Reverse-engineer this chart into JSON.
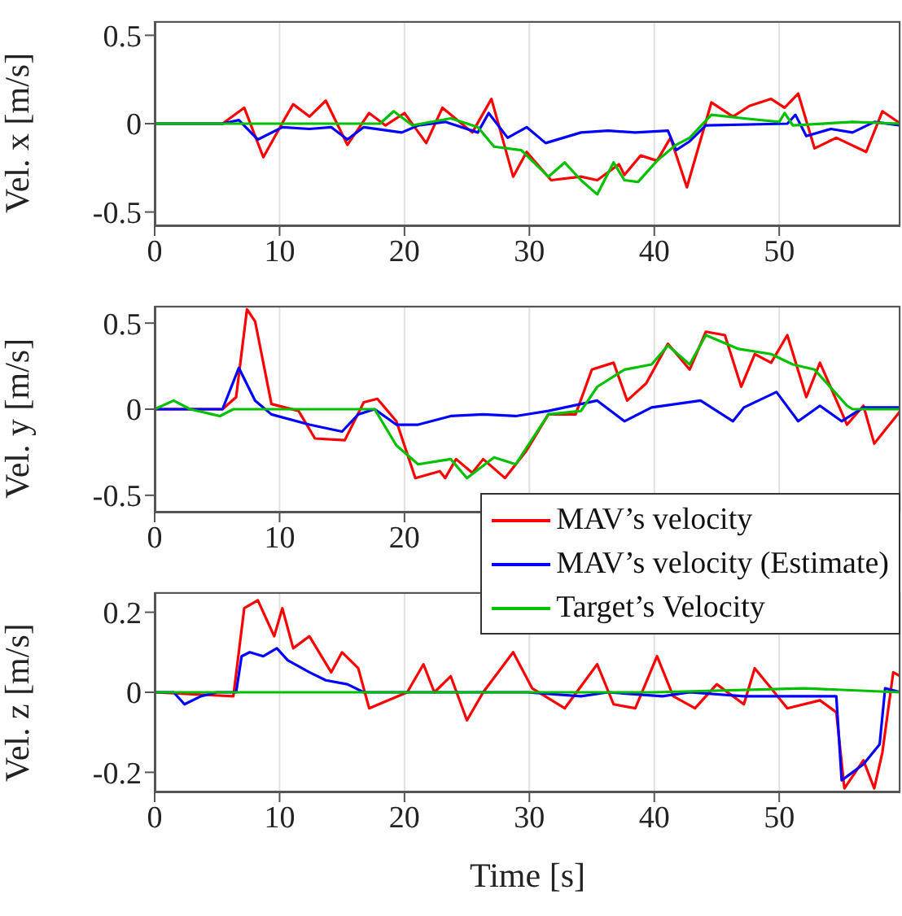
{
  "chart_data": [
    {
      "type": "line",
      "ylabel": "Vel. x [m/s]",
      "xlim": [
        0,
        59.7
      ],
      "xticks": [
        0,
        10,
        20,
        30,
        40,
        50
      ],
      "ylim": [
        -0.58,
        0.58
      ],
      "yticks": [
        -0.5,
        0,
        0.5
      ],
      "grid": true,
      "line_style": "solid",
      "marker": "none",
      "series": [
        {
          "color": "#ff0000",
          "x": [
            0,
            5.43,
            7.17,
            8.7,
            10.43,
            11.09,
            12.39,
            13.7,
            15.43,
            17.17,
            18.48,
            20,
            21.74,
            23.04,
            25.43,
            26.96,
            28.7,
            29.78,
            31.74,
            34.13,
            35.43,
            37.17,
            37.61,
            38.91,
            40.22,
            41.3,
            42.61,
            44.57,
            46.3,
            47.61,
            49.35,
            50.43,
            51.52,
            52.83,
            54.57,
            56.96,
            58.26,
            59.7
          ],
          "values": [
            0,
            0,
            0.09,
            -0.19,
            0.03,
            0.11,
            0.04,
            0.13,
            -0.12,
            0.06,
            -0.01,
            0.06,
            -0.11,
            0.09,
            -0.05,
            0.14,
            -0.3,
            -0.16,
            -0.32,
            -0.3,
            -0.32,
            -0.23,
            -0.29,
            -0.18,
            -0.21,
            -0.08,
            -0.36,
            0.12,
            0.04,
            0.1,
            0.14,
            0.09,
            0.17,
            -0.14,
            -0.08,
            -0.16,
            0.07,
            0
          ]
        },
        {
          "color": "#0000ff",
          "x": [
            0,
            5.43,
            6.74,
            8.26,
            10.22,
            12.39,
            14.13,
            15.43,
            16.74,
            19.78,
            21.09,
            23.26,
            25.87,
            26.74,
            28.26,
            29.78,
            31.3,
            34.13,
            36.3,
            38.48,
            41.09,
            41.74,
            42.83,
            44.13,
            50.65,
            51.3,
            52.17,
            54.13,
            55.87,
            57.61,
            59.7
          ],
          "values": [
            0,
            0,
            0.02,
            -0.09,
            -0.02,
            -0.03,
            -0.02,
            -0.09,
            -0.02,
            -0.05,
            -0.01,
            0.01,
            -0.05,
            0.06,
            -0.08,
            -0.02,
            -0.11,
            -0.05,
            -0.04,
            -0.05,
            -0.04,
            -0.15,
            -0.1,
            -0.01,
            0,
            0.05,
            -0.07,
            -0.03,
            -0.05,
            0.01,
            -0.01
          ]
        },
        {
          "color": "#00c000",
          "x": [
            0,
            18.04,
            19.13,
            20.65,
            23.7,
            25.87,
            27.17,
            29.35,
            31.52,
            32.83,
            34.13,
            35.43,
            36.74,
            37.61,
            38.7,
            40.22,
            41.74,
            42.83,
            44.57,
            47.17,
            50,
            50.43,
            51.09,
            55.87,
            59.7
          ],
          "values": [
            0,
            0,
            0.07,
            -0.01,
            0.03,
            -0.02,
            -0.13,
            -0.15,
            -0.3,
            -0.22,
            -0.32,
            -0.4,
            -0.22,
            -0.32,
            -0.33,
            -0.21,
            -0.12,
            -0.08,
            0.05,
            0.03,
            0.01,
            0.06,
            -0.01,
            0.01,
            0
          ]
        }
      ]
    },
    {
      "type": "line",
      "ylabel": "Vel. y [m/s]",
      "xlim": [
        0,
        59.7
      ],
      "xticks": [
        0,
        10,
        20,
        {
          "value": 30,
          "label": null
        },
        {
          "value": 40,
          "label": null
        },
        {
          "value": 50,
          "label": null
        }
      ],
      "ylim": [
        -0.6,
        0.6
      ],
      "yticks": [
        -0.5,
        0,
        0.5
      ],
      "grid": true,
      "line_style": "solid",
      "marker": "none",
      "legend": "bottom right",
      "series": [
        {
          "name": "MAV’s velocity",
          "color": "#ff0000",
          "x": [
            0,
            5.43,
            6.52,
            7.39,
            8.04,
            9.35,
            11.52,
            12.83,
            15.22,
            16.74,
            17.83,
            19.35,
            20.87,
            22.83,
            23.26,
            24.13,
            25.43,
            26.3,
            28.04,
            29.78,
            31.52,
            33.7,
            35,
            36.74,
            37.83,
            39.35,
            41.09,
            42.83,
            44.13,
            45.65,
            46.96,
            48.04,
            49.35,
            50.65,
            52.17,
            53.26,
            55.43,
            56.74,
            57.61,
            59.7
          ],
          "values": [
            0,
            0,
            0.07,
            0.58,
            0.51,
            0.03,
            -0.01,
            -0.17,
            -0.18,
            0.04,
            0.06,
            -0.07,
            -0.4,
            -0.36,
            -0.4,
            -0.29,
            -0.37,
            -0.29,
            -0.4,
            -0.24,
            -0.03,
            -0.03,
            0.23,
            0.27,
            0.05,
            0.15,
            0.38,
            0.23,
            0.45,
            0.43,
            0.13,
            0.32,
            0.27,
            0.43,
            0.07,
            0.27,
            -0.09,
            0.02,
            -0.2,
            -0.01
          ]
        },
        {
          "name": "MAV’s velocity (Estimate)",
          "color": "#0000ff",
          "x": [
            0,
            5.43,
            6.74,
            8.04,
            9.35,
            12.39,
            15,
            16.3,
            17.61,
            19.35,
            21.09,
            23.7,
            26.3,
            28.91,
            31.52,
            35.43,
            37.61,
            39.78,
            43.7,
            46.3,
            47.17,
            49.78,
            51.52,
            53.26,
            55,
            56.74,
            59.7
          ],
          "values": [
            0,
            0,
            0.24,
            0.05,
            -0.03,
            -0.09,
            -0.13,
            -0.03,
            0,
            -0.09,
            -0.09,
            -0.04,
            -0.03,
            -0.04,
            -0.01,
            0.05,
            -0.07,
            0.01,
            0.05,
            -0.07,
            0.01,
            0.1,
            -0.07,
            0.02,
            -0.07,
            0.01,
            0.01
          ]
        },
        {
          "name": "Target’s Velocity",
          "color": "#00c000",
          "x": [
            0,
            1.52,
            2.83,
            5.22,
            6.3,
            17.61,
            19.35,
            21.09,
            23.7,
            25,
            27.17,
            28.91,
            31.52,
            34.13,
            35.43,
            37.61,
            39.78,
            41.09,
            42.83,
            44.13,
            46.74,
            49.35,
            51.09,
            52.83,
            55.43,
            55.87,
            59.7
          ],
          "values": [
            0,
            0.05,
            0,
            -0.04,
            0,
            0,
            -0.21,
            -0.32,
            -0.29,
            -0.4,
            -0.28,
            -0.32,
            -0.03,
            -0.01,
            0.13,
            0.23,
            0.26,
            0.37,
            0.26,
            0.43,
            0.35,
            0.32,
            0.26,
            0.23,
            0.02,
            0,
            0
          ]
        }
      ]
    },
    {
      "type": "line",
      "xlabel": "Time [s]",
      "ylabel": "Vel. z [m/s]",
      "xlim": [
        0,
        59.7
      ],
      "xticks": [
        0,
        10,
        20,
        30,
        40,
        50
      ],
      "ylim": [
        -0.25,
        0.25
      ],
      "yticks": [
        -0.2,
        0,
        0.2
      ],
      "grid": true,
      "line_style": "solid",
      "marker": "none",
      "series": [
        {
          "color": "#ff0000",
          "x": [
            0,
            6.3,
            7.17,
            8.26,
            9.57,
            10.22,
            11.09,
            12.39,
            14.13,
            15,
            16.3,
            17.17,
            20.22,
            21.52,
            22.39,
            23.7,
            25,
            26.3,
            28.7,
            30.22,
            32.83,
            35.43,
            36.74,
            38.48,
            40.22,
            41.52,
            43.26,
            45,
            47.17,
            48.04,
            49.35,
            50.65,
            53.26,
            54.57,
            55.22,
            56.74,
            57.61,
            58.26,
            59.13,
            59.7
          ],
          "values": [
            0,
            -0.01,
            0.21,
            0.23,
            0.14,
            0.21,
            0.11,
            0.14,
            0.05,
            0.1,
            0.06,
            -0.04,
            0,
            0.07,
            0,
            0.04,
            -0.07,
            0,
            0.1,
            0.01,
            -0.04,
            0.07,
            -0.03,
            -0.04,
            0.09,
            -0.01,
            -0.04,
            0.02,
            -0.03,
            0.06,
            0.01,
            -0.04,
            -0.02,
            -0.05,
            -0.24,
            -0.17,
            -0.24,
            -0.15,
            0.05,
            0.04
          ]
        },
        {
          "color": "#0000ff",
          "x": [
            0,
            1.52,
            2.39,
            3.7,
            5,
            6.52,
            6.96,
            7.61,
            8.7,
            9.78,
            10.65,
            12.39,
            13.7,
            15.43,
            16.74,
            20.22,
            23.7,
            27.17,
            29.78,
            34.13,
            36.3,
            40.65,
            42.83,
            47.17,
            49.35,
            54.57,
            55,
            55.87,
            56.74,
            58.04,
            58.48,
            59.7
          ],
          "values": [
            0,
            0,
            -0.03,
            -0.01,
            0,
            0,
            0.09,
            0.1,
            0.09,
            0.11,
            0.08,
            0.05,
            0.03,
            0.02,
            0,
            0,
            0,
            0,
            0,
            -0.01,
            0,
            -0.01,
            0,
            -0.01,
            -0.01,
            -0.01,
            -0.22,
            -0.2,
            -0.18,
            -0.13,
            0.01,
            0
          ]
        },
        {
          "color": "#00c000",
          "x": [
            0,
            20,
            40,
            52,
            59.7
          ],
          "values": [
            0,
            0,
            0,
            0.01,
            0
          ]
        }
      ]
    }
  ]
}
